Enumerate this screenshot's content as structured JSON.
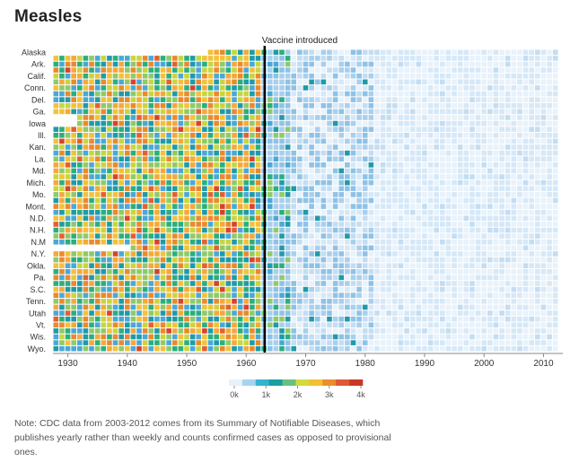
{
  "page": {
    "title": "Measles",
    "note": "Note: CDC data from 2003-2012 comes from its Summary of Notifiable Diseases, which publishes yearly rather than weekly and counts confirmed cases as opposed to provisional ones."
  },
  "chart_data": {
    "type": "heatmap",
    "title": "Measles",
    "y_tick_labels": [
      "Alaska",
      "Ark.",
      "Calif.",
      "Conn.",
      "Del.",
      "Ga.",
      "Iowa",
      "Ill.",
      "Kan.",
      "La.",
      "Md.",
      "Mich.",
      "Mo.",
      "Mont.",
      "N.D.",
      "N.H.",
      "N.M",
      "N.Y.",
      "Okla.",
      "Pa.",
      "S.C.",
      "Tenn.",
      "Utah",
      "Vt.",
      "Wis.",
      "Wyo."
    ],
    "x_ticks": [
      1930,
      1940,
      1950,
      1960,
      1970,
      1980,
      1990,
      2000,
      2010
    ],
    "xlim": [
      1928,
      2012
    ],
    "row_count": 51,
    "annotation": {
      "year": 1963,
      "label": "Vaccine introduced"
    },
    "legend": {
      "ticks": [
        "0k",
        "1k",
        "2k",
        "3k",
        "4k"
      ],
      "colors": [
        "#e7f1fa",
        "#a6d4f0",
        "#35b3d1",
        "#1b9ea0",
        "#6bbf82",
        "#d4d93f",
        "#f2c030",
        "#e98e2e",
        "#dd5a35",
        "#c83828"
      ]
    },
    "colors": {
      "pre_vaccine_palette": [
        "#4aa8d6",
        "#1f9aa8",
        "#2cae7c",
        "#8fca6a",
        "#c9d540",
        "#f1c23a",
        "#f4a93a",
        "#e98a2d"
      ],
      "high_palette": [
        "#e2612f",
        "#d7432a"
      ],
      "post_vaccine_palette": [
        "#e8f2fb",
        "#d6e8f7",
        "#c3ddf2",
        "#a9cfec",
        "#8ec2e6"
      ],
      "empty": "#ffffff",
      "vaccine_line": "#000000",
      "axis": "#888888"
    },
    "grid": false
  }
}
